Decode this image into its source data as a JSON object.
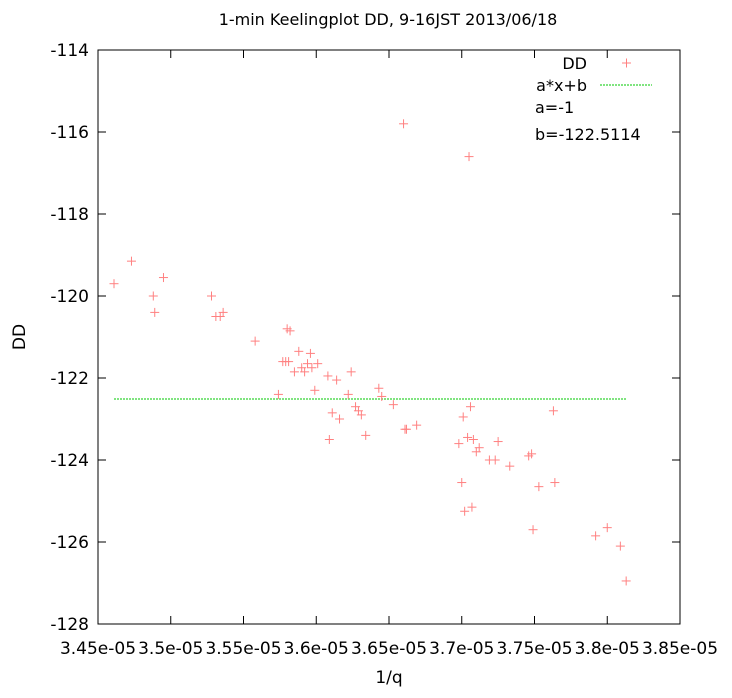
{
  "colors": {
    "data_points": "#ff8080",
    "fit_line": "#00c800",
    "axis": "#000000",
    "background": "#ffffff"
  },
  "chart_data": {
    "type": "scatter",
    "title": "1-min Keelingplot DD, 9-16JST 2013/06/18",
    "xlabel": "1/q",
    "ylabel": "DD",
    "xlim": [
      3.45e-05,
      3.85e-05
    ],
    "ylim": [
      -128,
      -114
    ],
    "grid": false,
    "legend_position": "top-right",
    "xticks": [
      3.45e-05,
      3.5e-05,
      3.55e-05,
      3.6e-05,
      3.65e-05,
      3.7e-05,
      3.75e-05,
      3.8e-05,
      3.85e-05
    ],
    "xtick_labels": [
      "3.45e-05",
      "3.5e-05",
      "3.55e-05",
      "3.6e-05",
      "3.65e-05",
      "3.7e-05",
      "3.75e-05",
      "3.8e-05",
      "3.85e-05"
    ],
    "yticks": [
      -114,
      -116,
      -118,
      -120,
      -122,
      -124,
      -126,
      -128
    ],
    "ytick_labels": [
      "-114",
      "-116",
      "-118",
      "-120",
      "-122",
      "-124",
      "-126",
      "-128"
    ],
    "series": [
      {
        "name": "DD",
        "kind": "points",
        "marker": "+",
        "color": "#ff8080",
        "x": [
          3.461e-05,
          3.473e-05,
          3.488e-05,
          3.489e-05,
          3.495e-05,
          3.528e-05,
          3.531e-05,
          3.534e-05,
          3.536e-05,
          3.558e-05,
          3.574e-05,
          3.577e-05,
          3.579e-05,
          3.58e-05,
          3.581e-05,
          3.582e-05,
          3.585e-05,
          3.588e-05,
          3.59e-05,
          3.592e-05,
          3.594e-05,
          3.596e-05,
          3.597e-05,
          3.599e-05,
          3.601e-05,
          3.608e-05,
          3.609e-05,
          3.611e-05,
          3.614e-05,
          3.616e-05,
          3.622e-05,
          3.624e-05,
          3.627e-05,
          3.629e-05,
          3.631e-05,
          3.634e-05,
          3.643e-05,
          3.645e-05,
          3.653e-05,
          3.66e-05,
          3.661e-05,
          3.662e-05,
          3.669e-05,
          3.698e-05,
          3.7e-05,
          3.701e-05,
          3.702e-05,
          3.704e-05,
          3.705e-05,
          3.706e-05,
          3.707e-05,
          3.708e-05,
          3.71e-05,
          3.712e-05,
          3.719e-05,
          3.723e-05,
          3.725e-05,
          3.733e-05,
          3.746e-05,
          3.748e-05,
          3.749e-05,
          3.753e-05,
          3.763e-05,
          3.764e-05,
          3.792e-05,
          3.8e-05,
          3.809e-05,
          3.813e-05
        ],
        "y": [
          -119.7,
          -119.15,
          -120.0,
          -120.4,
          -119.55,
          -120.0,
          -120.5,
          -120.5,
          -120.4,
          -121.1,
          -122.4,
          -121.6,
          -121.6,
          -120.8,
          -121.6,
          -120.85,
          -121.85,
          -121.35,
          -121.75,
          -121.85,
          -121.65,
          -121.4,
          -121.75,
          -122.3,
          -121.65,
          -121.95,
          -123.5,
          -122.85,
          -122.05,
          -123.0,
          -122.4,
          -121.85,
          -122.7,
          -122.8,
          -122.9,
          -123.4,
          -122.25,
          -122.45,
          -122.65,
          -115.8,
          -123.25,
          -123.25,
          -123.15,
          -123.6,
          -124.55,
          -122.95,
          -125.25,
          -123.45,
          -116.6,
          -122.7,
          -125.15,
          -123.5,
          -123.8,
          -123.7,
          -124.0,
          -124.0,
          -123.55,
          -124.15,
          -123.9,
          -123.85,
          -125.7,
          -124.65,
          -122.8,
          -124.55,
          -125.85,
          -125.65,
          -126.1,
          -126.95
        ]
      },
      {
        "name": "a*x+b",
        "kind": "line",
        "color": "#00c800",
        "x": [
          3.461e-05,
          3.813e-05
        ],
        "y": [
          -122.5114,
          -122.5114
        ]
      }
    ],
    "annotations": [
      "a=-1",
      "b=-122.5114"
    ]
  }
}
